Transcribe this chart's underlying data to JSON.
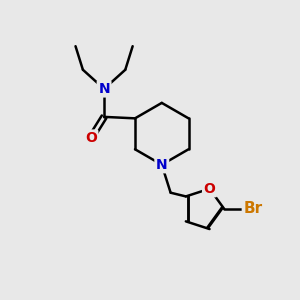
{
  "background_color": "#e8e8e8",
  "bond_color": "#000000",
  "bond_width": 1.8,
  "atom_colors": {
    "N": "#0000cc",
    "O": "#cc0000",
    "Br": "#cc7700",
    "C": "#000000"
  },
  "font_size_atom": 10,
  "font_size_br": 11,
  "figsize": [
    3.0,
    3.0
  ],
  "dpi": 100
}
